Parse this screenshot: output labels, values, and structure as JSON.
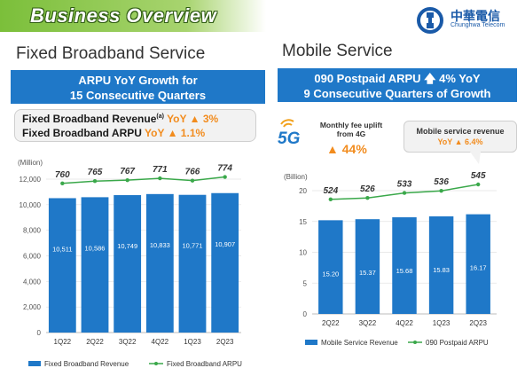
{
  "page": {
    "title": "Business Overview",
    "logo": {
      "name_zh": "中華電信",
      "name_en": "Chunghwa Telecom",
      "icon": "chunghwa-telecom-logo-icon"
    }
  },
  "fixed": {
    "section_title": "Fixed Broadband Service",
    "banner_line1": "ARPU YoY Growth for",
    "banner_line2": "15 Consecutive Quarters",
    "callout": {
      "revenue_label": "Fixed Broadband Revenue",
      "revenue_note": "(a)",
      "revenue_yoy": "YoY ▲ 3%",
      "arpu_label": "Fixed Broadband ARPU",
      "arpu_yoy": "YoY ▲ 1.1%"
    }
  },
  "mobile": {
    "section_title": "Mobile Service",
    "banner_line1": "090 Postpaid ARPU 🡅 4% YoY",
    "banner_line2": "9 Consecutive Quarters of Growth",
    "uplift_icon": "5G",
    "uplift_label": "Monthly fee uplift from 4G",
    "uplift_value": "▲ 44%",
    "revenue_callout_label": "Mobile service revenue",
    "revenue_callout_value": "YoY ▲ 6.4%"
  },
  "chart_data": [
    {
      "type": "bar",
      "ylabel": "(Million)",
      "ylim": [
        0,
        12000
      ],
      "yticks": [
        "0",
        "2,000",
        "4,000",
        "6,000",
        "8,000",
        "10,000",
        "12,000"
      ],
      "categories": [
        "1Q22",
        "2Q22",
        "3Q22",
        "4Q22",
        "1Q23",
        "2Q23"
      ],
      "series": [
        {
          "name": "Fixed Broadband Revenue",
          "kind": "bar",
          "color": "#1f78c8",
          "values": [
            10511,
            10586,
            10749,
            10833,
            10771,
            10907
          ],
          "labels": [
            "10,511",
            "10,586",
            "10,749",
            "10,833",
            "10,771",
            "10,907"
          ]
        },
        {
          "name": "Fixed Broadband ARPU",
          "kind": "line",
          "color": "#3aa84a",
          "values": [
            760,
            765,
            767,
            771,
            766,
            774
          ],
          "labels": [
            "760",
            "765",
            "767",
            "771",
            "766",
            "774"
          ]
        }
      ],
      "legend": "bottom"
    },
    {
      "type": "bar",
      "ylabel": "(Billion)",
      "ylim": [
        0,
        20
      ],
      "yticks": [
        "0",
        "5",
        "10",
        "15",
        "20"
      ],
      "categories": [
        "2Q22",
        "3Q22",
        "4Q22",
        "1Q23",
        "2Q23"
      ],
      "series": [
        {
          "name": "Mobile Service Revenue",
          "kind": "bar",
          "color": "#1f78c8",
          "values": [
            15.2,
            15.37,
            15.68,
            15.83,
            16.17
          ],
          "labels": [
            "15.20",
            "15.37",
            "15.68",
            "15.83",
            "16.17"
          ]
        },
        {
          "name": "090 Postpaid ARPU",
          "kind": "line",
          "color": "#3aa84a",
          "values": [
            524,
            526,
            533,
            536,
            545
          ],
          "labels": [
            "524",
            "526",
            "533",
            "536",
            "545"
          ]
        }
      ],
      "legend": "bottom"
    }
  ]
}
